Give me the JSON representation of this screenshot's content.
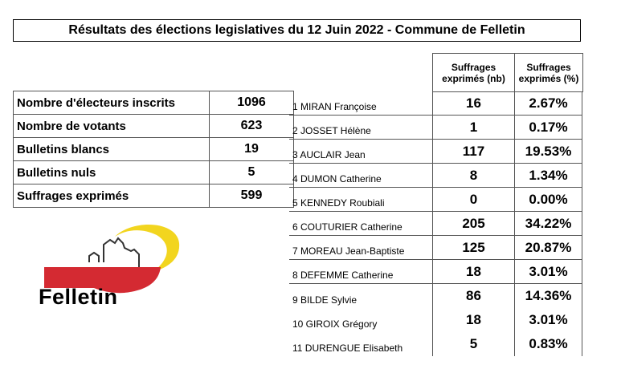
{
  "title": "Résultats des élections legislatives du 12 Juin 2022 - Commune de Felletin",
  "summary": [
    {
      "label": "Nombre d'électeurs inscrits",
      "value": "1096"
    },
    {
      "label": "Nombre de votants",
      "value": "623"
    },
    {
      "label": "Bulletins blancs",
      "value": "19"
    },
    {
      "label": "Bulletins nuls",
      "value": "5"
    },
    {
      "label": "Suffrages exprimés",
      "value": "599"
    }
  ],
  "results_header": {
    "col_nb": "Suffrages exprimés (nb)",
    "col_pct": "Suffrages exprimés (%)"
  },
  "candidates": [
    {
      "name": "1 MIRAN Françoise",
      "nb": "16",
      "pct": "2.67%"
    },
    {
      "name": "2 JOSSET Hélène",
      "nb": "1",
      "pct": "0.17%"
    },
    {
      "name": "3 AUCLAIR Jean",
      "nb": "117",
      "pct": "19.53%"
    },
    {
      "name": "4 DUMON Catherine",
      "nb": "8",
      "pct": "1.34%"
    },
    {
      "name": "5 KENNEDY Roubiali",
      "nb": "0",
      "pct": "0.00%"
    },
    {
      "name": "6 COUTURIER Catherine",
      "nb": "205",
      "pct": "34.22%"
    },
    {
      "name": "7 MOREAU Jean-Baptiste",
      "nb": "125",
      "pct": "20.87%"
    },
    {
      "name": "8 DEFEMME Catherine",
      "nb": "18",
      "pct": "3.01%"
    },
    {
      "name": "9 BILDE Sylvie",
      "nb": "86",
      "pct": "14.36%"
    },
    {
      "name": "10 GIROIX Grégory",
      "nb": "18",
      "pct": "3.01%"
    },
    {
      "name": "11 DURENGUE Elisabeth",
      "nb": "5",
      "pct": "0.83%"
    }
  ],
  "logo": {
    "text": "Felletin",
    "colors": {
      "red": "#d42a32",
      "yellow": "#f2d51f",
      "outline": "#333333"
    }
  }
}
